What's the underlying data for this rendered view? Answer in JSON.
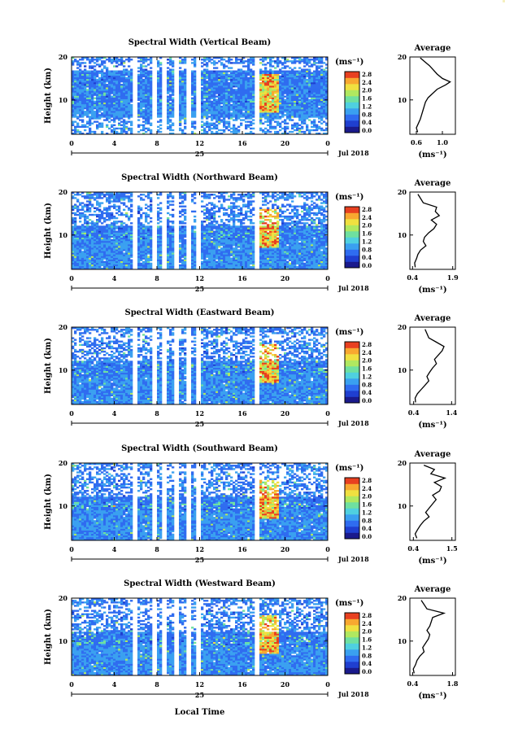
{
  "figure": {
    "x_axis_title": "Local Time",
    "date_label": "Jul 2018",
    "day_label": "25",
    "colorbar_unit": "(ms⁻¹)",
    "colorbar_ticks": [
      "0.0",
      "0.4",
      "0.8",
      "1.2",
      "1.6",
      "2.0",
      "2.4",
      "2.8"
    ],
    "colormap": [
      "#1a1a8c",
      "#1f3fd0",
      "#2f6cf0",
      "#3aa0f0",
      "#4fd0e0",
      "#6fe0a0",
      "#b0e860",
      "#f0e040",
      "#f8a830",
      "#e84020"
    ],
    "height_axis_label": "Height (km)",
    "average_title": "Average",
    "average_unit": "(ms⁻¹)"
  },
  "chart_data": [
    {
      "type": "heatmap",
      "title": "Spectral Width (Vertical Beam)",
      "ylabel": "Height (km)",
      "xlabel": "Local Time",
      "x_ticks": [
        "0",
        "4",
        "8",
        "12",
        "16",
        "20",
        "0"
      ],
      "x_range": [
        0,
        24
      ],
      "y_ticks": [
        "20",
        "10"
      ],
      "y_range": [
        2,
        20
      ],
      "color_range": [
        0.0,
        2.8
      ],
      "data_gaps_hours": [
        [
          5.7,
          6.2
        ],
        [
          7.6,
          8.0
        ],
        [
          8.4,
          8.8
        ],
        [
          9.5,
          10.0
        ],
        [
          10.8,
          11.2
        ],
        [
          11.6,
          12.2
        ],
        [
          17.2,
          17.6
        ]
      ],
      "profile": {
        "title": "Average",
        "xlabel": "(ms⁻¹)",
        "x_ticks": [
          "0.6",
          "1.0"
        ],
        "x_range": [
          0.5,
          1.2
        ],
        "y_ticks": [
          "20",
          "10"
        ],
        "y_range": [
          2,
          20
        ],
        "points": [
          [
            0.62,
            2.5
          ],
          [
            0.6,
            3.5
          ],
          [
            0.63,
            4.5
          ],
          [
            0.66,
            5.5
          ],
          [
            0.68,
            6.5
          ],
          [
            0.7,
            7.5
          ],
          [
            0.72,
            8.5
          ],
          [
            0.74,
            9.5
          ],
          [
            0.78,
            10.5
          ],
          [
            0.85,
            11.5
          ],
          [
            0.92,
            12.5
          ],
          [
            1.05,
            13.5
          ],
          [
            1.12,
            14.2
          ],
          [
            1.0,
            15.0
          ],
          [
            0.92,
            16.0
          ],
          [
            0.86,
            17.0
          ],
          [
            0.8,
            18.0
          ],
          [
            0.72,
            19.0
          ],
          [
            0.66,
            19.8
          ]
        ]
      }
    },
    {
      "type": "heatmap",
      "title": "Spectral Width (Northward Beam)",
      "ylabel": "Height (km)",
      "xlabel": "Local Time",
      "x_ticks": [
        "0",
        "4",
        "8",
        "12",
        "16",
        "20",
        "0"
      ],
      "x_range": [
        0,
        24
      ],
      "y_ticks": [
        "20",
        "10"
      ],
      "y_range": [
        2,
        20
      ],
      "color_range": [
        0.0,
        2.8
      ],
      "data_gaps_hours": [
        [
          5.7,
          6.2
        ],
        [
          7.6,
          8.0
        ],
        [
          8.4,
          8.8
        ],
        [
          9.5,
          10.0
        ],
        [
          10.8,
          11.2
        ],
        [
          11.6,
          12.2
        ],
        [
          17.2,
          17.6
        ]
      ],
      "profile": {
        "title": "Average",
        "xlabel": "(ms⁻¹)",
        "x_ticks": [
          "0.4",
          "1.9"
        ],
        "x_range": [
          0.3,
          2.0
        ],
        "y_ticks": [
          "20",
          "10"
        ],
        "y_range": [
          2,
          20
        ],
        "points": [
          [
            0.5,
            2.5
          ],
          [
            0.48,
            3.5
          ],
          [
            0.55,
            4.5
          ],
          [
            0.6,
            5.5
          ],
          [
            0.7,
            6.5
          ],
          [
            0.9,
            7.5
          ],
          [
            0.8,
            8.5
          ],
          [
            0.85,
            9.5
          ],
          [
            1.0,
            10.5
          ],
          [
            1.2,
            11.5
          ],
          [
            1.3,
            12.5
          ],
          [
            1.1,
            13.5
          ],
          [
            1.4,
            14.5
          ],
          [
            1.25,
            15.5
          ],
          [
            1.3,
            16.5
          ],
          [
            0.8,
            17.5
          ],
          [
            0.7,
            18.5
          ],
          [
            0.6,
            19.5
          ]
        ]
      }
    },
    {
      "type": "heatmap",
      "title": "Spectral Width (Eastward Beam)",
      "ylabel": "Height (km)",
      "xlabel": "Local Time",
      "x_ticks": [
        "0",
        "4",
        "8",
        "12",
        "16",
        "20",
        "0"
      ],
      "x_range": [
        0,
        24
      ],
      "y_ticks": [
        "20",
        "10"
      ],
      "y_range": [
        2,
        20
      ],
      "color_range": [
        0.0,
        2.8
      ],
      "data_gaps_hours": [
        [
          5.7,
          6.2
        ],
        [
          7.6,
          8.0
        ],
        [
          8.4,
          8.8
        ],
        [
          9.5,
          10.0
        ],
        [
          10.8,
          11.2
        ],
        [
          11.6,
          12.2
        ],
        [
          17.2,
          17.6
        ]
      ],
      "profile": {
        "title": "Average",
        "xlabel": "(ms⁻¹)",
        "x_ticks": [
          "0.4",
          "1.4"
        ],
        "x_range": [
          0.3,
          1.5
        ],
        "y_ticks": [
          "20",
          "10"
        ],
        "y_range": [
          2,
          20
        ],
        "points": [
          [
            0.45,
            2.5
          ],
          [
            0.44,
            3.5
          ],
          [
            0.5,
            4.5
          ],
          [
            0.6,
            5.5
          ],
          [
            0.7,
            6.5
          ],
          [
            0.8,
            7.5
          ],
          [
            0.75,
            8.5
          ],
          [
            0.82,
            9.5
          ],
          [
            0.9,
            10.5
          ],
          [
            1.0,
            11.5
          ],
          [
            0.95,
            12.5
          ],
          [
            1.05,
            13.5
          ],
          [
            1.15,
            14.5
          ],
          [
            1.2,
            15.5
          ],
          [
            1.0,
            16.5
          ],
          [
            0.8,
            17.5
          ],
          [
            0.75,
            18.5
          ],
          [
            0.7,
            19.5
          ]
        ]
      }
    },
    {
      "type": "heatmap",
      "title": "Spectral Width (Southward Beam)",
      "ylabel": "Height (km)",
      "xlabel": "Local Time",
      "x_ticks": [
        "0",
        "4",
        "8",
        "12",
        "16",
        "20",
        "0"
      ],
      "x_range": [
        0,
        24
      ],
      "y_ticks": [
        "20",
        "10"
      ],
      "y_range": [
        2,
        20
      ],
      "color_range": [
        0.0,
        2.8
      ],
      "data_gaps_hours": [
        [
          5.7,
          6.2
        ],
        [
          7.6,
          8.0
        ],
        [
          8.4,
          8.8
        ],
        [
          9.5,
          10.0
        ],
        [
          10.8,
          11.2
        ],
        [
          11.6,
          12.2
        ],
        [
          17.2,
          17.6
        ]
      ],
      "profile": {
        "title": "Average",
        "xlabel": "(ms⁻¹)",
        "x_ticks": [
          "0.4",
          "1.5"
        ],
        "x_range": [
          0.3,
          1.6
        ],
        "y_ticks": [
          "20",
          "10"
        ],
        "y_range": [
          2,
          20
        ],
        "points": [
          [
            0.5,
            2.5
          ],
          [
            0.45,
            3.5
          ],
          [
            0.52,
            4.5
          ],
          [
            0.6,
            5.5
          ],
          [
            0.7,
            6.5
          ],
          [
            0.85,
            7.5
          ],
          [
            0.75,
            8.5
          ],
          [
            0.85,
            9.5
          ],
          [
            0.95,
            10.5
          ],
          [
            1.05,
            11.5
          ],
          [
            0.95,
            12.5
          ],
          [
            1.15,
            13.5
          ],
          [
            1.2,
            14.5
          ],
          [
            1.0,
            15.5
          ],
          [
            1.3,
            16.5
          ],
          [
            0.9,
            17.5
          ],
          [
            1.0,
            18.5
          ],
          [
            0.7,
            19.5
          ]
        ]
      }
    },
    {
      "type": "heatmap",
      "title": "Spectral Width (Westward Beam)",
      "ylabel": "Height (km)",
      "xlabel": "Local Time",
      "x_ticks": [
        "0",
        "4",
        "8",
        "12",
        "16",
        "20",
        "0"
      ],
      "x_range": [
        0,
        24
      ],
      "y_ticks": [
        "20",
        "10"
      ],
      "y_range": [
        2,
        20
      ],
      "color_range": [
        0.0,
        2.8
      ],
      "data_gaps_hours": [
        [
          5.7,
          6.2
        ],
        [
          7.6,
          8.0
        ],
        [
          8.4,
          8.8
        ],
        [
          9.5,
          10.0
        ],
        [
          10.8,
          11.2
        ],
        [
          11.6,
          12.2
        ],
        [
          17.2,
          17.6
        ]
      ],
      "profile": {
        "title": "Average",
        "xlabel": "(ms⁻¹)",
        "x_ticks": [
          "0.4",
          "1.8"
        ],
        "x_range": [
          0.3,
          1.9
        ],
        "y_ticks": [
          "20",
          "10"
        ],
        "y_range": [
          2,
          20
        ],
        "points": [
          [
            0.45,
            2.5
          ],
          [
            0.42,
            3.5
          ],
          [
            0.5,
            4.5
          ],
          [
            0.55,
            5.5
          ],
          [
            0.65,
            6.5
          ],
          [
            0.8,
            7.5
          ],
          [
            0.75,
            8.5
          ],
          [
            0.85,
            9.5
          ],
          [
            0.95,
            10.5
          ],
          [
            1.0,
            11.5
          ],
          [
            0.9,
            12.5
          ],
          [
            1.0,
            13.5
          ],
          [
            1.05,
            14.5
          ],
          [
            1.1,
            15.5
          ],
          [
            1.5,
            16.5
          ],
          [
            0.9,
            17.5
          ],
          [
            0.8,
            18.5
          ],
          [
            0.7,
            19.5
          ]
        ]
      }
    }
  ]
}
